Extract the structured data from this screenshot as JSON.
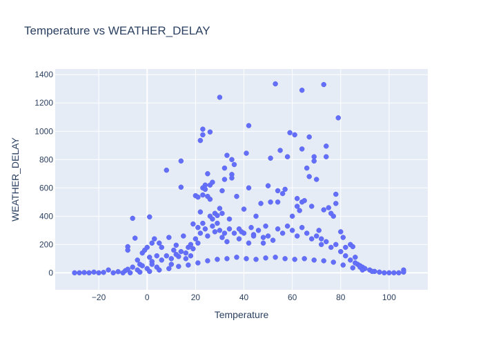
{
  "chart_data": {
    "type": "scatter",
    "title": "Temperature vs WEATHER_DELAY",
    "xlabel": "Temperature",
    "ylabel": "WEATHER_DELAY",
    "xlim": [
      -38,
      116
    ],
    "ylim": [
      -120,
      1440
    ],
    "x_ticks": [
      -20,
      0,
      20,
      40,
      60,
      80,
      100
    ],
    "y_ticks": [
      0,
      200,
      400,
      600,
      800,
      1000,
      1200,
      1400
    ],
    "grid": true,
    "colors": {
      "plot_bg": "#e5ecf6",
      "grid": "#ffffff",
      "marker": "#636efa",
      "text": "#2a3f5f"
    },
    "series": [
      {
        "points": [
          [
            -30,
            0
          ],
          [
            -28,
            0
          ],
          [
            -26,
            2
          ],
          [
            -24,
            0
          ],
          [
            -22,
            5
          ],
          [
            -20,
            0
          ],
          [
            -18,
            3
          ],
          [
            -16,
            20
          ],
          [
            -14,
            0
          ],
          [
            -12,
            8
          ],
          [
            -10,
            0
          ],
          [
            -9,
            15
          ],
          [
            -8,
            25
          ],
          [
            -7,
            0
          ],
          [
            -8,
            185
          ],
          [
            -8,
            160
          ],
          [
            -6,
            385
          ],
          [
            -5,
            245
          ],
          [
            -4,
            90
          ],
          [
            -3,
            60
          ],
          [
            -2,
            140
          ],
          [
            -1,
            160
          ],
          [
            0,
            180
          ],
          [
            1,
            395
          ],
          [
            1,
            110
          ],
          [
            2,
            210
          ],
          [
            2,
            80
          ],
          [
            3,
            240
          ],
          [
            4,
            120
          ],
          [
            5,
            210
          ],
          [
            6,
            180
          ],
          [
            8,
            725
          ],
          [
            9,
            250
          ],
          [
            10,
            100
          ],
          [
            11,
            160
          ],
          [
            12,
            195
          ],
          [
            13,
            115
          ],
          [
            14,
            790
          ],
          [
            14,
            605
          ],
          [
            15,
            260
          ],
          [
            16,
            140
          ],
          [
            17,
            180
          ],
          [
            18,
            120
          ],
          [
            19,
            345
          ],
          [
            20,
            545
          ],
          [
            21,
            535
          ],
          [
            21,
            320
          ],
          [
            22,
            935
          ],
          [
            22,
            430
          ],
          [
            23,
            1015
          ],
          [
            23,
            975
          ],
          [
            23,
            600
          ],
          [
            23,
            550
          ],
          [
            24,
            620
          ],
          [
            24,
            590
          ],
          [
            25,
            700
          ],
          [
            25,
            540
          ],
          [
            26,
            995
          ],
          [
            26,
            620
          ],
          [
            26,
            520
          ],
          [
            27,
            640
          ],
          [
            27,
            380
          ],
          [
            28,
            420
          ],
          [
            29,
            405
          ],
          [
            30,
            1240
          ],
          [
            30,
            455
          ],
          [
            31,
            580
          ],
          [
            31,
            420
          ],
          [
            32,
            660
          ],
          [
            32,
            740
          ],
          [
            33,
            830
          ],
          [
            34,
            380
          ],
          [
            35,
            695
          ],
          [
            35,
            670
          ],
          [
            35,
            800
          ],
          [
            36,
            765
          ],
          [
            37,
            540
          ],
          [
            38,
            310
          ],
          [
            39,
            290
          ],
          [
            40,
            450
          ],
          [
            41,
            845
          ],
          [
            42,
            1040
          ],
          [
            42,
            600
          ],
          [
            43,
            320
          ],
          [
            44,
            270
          ],
          [
            45,
            400
          ],
          [
            47,
            490
          ],
          [
            48,
            250
          ],
          [
            49,
            330
          ],
          [
            50,
            615
          ],
          [
            51,
            810
          ],
          [
            51,
            500
          ],
          [
            53,
            1335
          ],
          [
            54,
            580
          ],
          [
            54,
            500
          ],
          [
            55,
            865
          ],
          [
            56,
            560
          ],
          [
            57,
            590
          ],
          [
            58,
            820
          ],
          [
            59,
            990
          ],
          [
            60,
            400
          ],
          [
            61,
            975
          ],
          [
            62,
            525
          ],
          [
            62,
            470
          ],
          [
            63,
            440
          ],
          [
            64,
            1290
          ],
          [
            64,
            875
          ],
          [
            64,
            500
          ],
          [
            65,
            510
          ],
          [
            66,
            740
          ],
          [
            67,
            960
          ],
          [
            67,
            680
          ],
          [
            68,
            470
          ],
          [
            69,
            820
          ],
          [
            69,
            790
          ],
          [
            70,
            660
          ],
          [
            71,
            300
          ],
          [
            72,
            240
          ],
          [
            73,
            1330
          ],
          [
            73,
            445
          ],
          [
            74,
            895
          ],
          [
            74,
            820
          ],
          [
            75,
            460
          ],
          [
            76,
            420
          ],
          [
            77,
            400
          ],
          [
            78,
            555
          ],
          [
            78,
            490
          ],
          [
            79,
            1095
          ],
          [
            80,
            290
          ],
          [
            81,
            250
          ],
          [
            82,
            180
          ],
          [
            84,
            200
          ],
          [
            85,
            185
          ],
          [
            86,
            110
          ],
          [
            87,
            60
          ],
          [
            88,
            50
          ],
          [
            89,
            40
          ],
          [
            90,
            30
          ],
          [
            92,
            20
          ],
          [
            94,
            10
          ],
          [
            96,
            5
          ],
          [
            98,
            0
          ],
          [
            100,
            0
          ],
          [
            102,
            0
          ],
          [
            104,
            0
          ],
          [
            106,
            20
          ],
          [
            106,
            5
          ],
          [
            -6,
            40
          ],
          [
            -4,
            20
          ],
          [
            -2,
            50
          ],
          [
            0,
            30
          ],
          [
            2,
            60
          ],
          [
            4,
            40
          ],
          [
            6,
            90
          ],
          [
            8,
            120
          ],
          [
            10,
            60
          ],
          [
            12,
            130
          ],
          [
            14,
            150
          ],
          [
            16,
            100
          ],
          [
            18,
            200
          ],
          [
            19,
            170
          ],
          [
            20,
            240
          ],
          [
            21,
            210
          ],
          [
            22,
            280
          ],
          [
            23,
            350
          ],
          [
            24,
            310
          ],
          [
            25,
            260
          ],
          [
            26,
            400
          ],
          [
            27,
            330
          ],
          [
            28,
            290
          ],
          [
            29,
            350
          ],
          [
            30,
            300
          ],
          [
            31,
            250
          ],
          [
            32,
            280
          ],
          [
            33,
            220
          ],
          [
            34,
            310
          ],
          [
            36,
            280
          ],
          [
            38,
            240
          ],
          [
            40,
            280
          ],
          [
            42,
            210
          ],
          [
            44,
            260
          ],
          [
            46,
            300
          ],
          [
            48,
            210
          ],
          [
            50,
            260
          ],
          [
            52,
            230
          ],
          [
            54,
            310
          ],
          [
            56,
            280
          ],
          [
            58,
            330
          ],
          [
            60,
            300
          ],
          [
            62,
            260
          ],
          [
            64,
            320
          ],
          [
            66,
            280
          ],
          [
            68,
            240
          ],
          [
            70,
            260
          ],
          [
            72,
            200
          ],
          [
            74,
            220
          ],
          [
            76,
            180
          ],
          [
            78,
            200
          ],
          [
            80,
            150
          ],
          [
            82,
            120
          ],
          [
            84,
            90
          ],
          [
            86,
            70
          ],
          [
            88,
            40
          ],
          [
            -3,
            5
          ],
          [
            1,
            10
          ],
          [
            5,
            20
          ],
          [
            9,
            30
          ],
          [
            13,
            45
          ],
          [
            17,
            55
          ],
          [
            21,
            70
          ],
          [
            25,
            85
          ],
          [
            29,
            95
          ],
          [
            33,
            100
          ],
          [
            37,
            110
          ],
          [
            41,
            100
          ],
          [
            45,
            95
          ],
          [
            49,
            105
          ],
          [
            53,
            110
          ],
          [
            57,
            100
          ],
          [
            61,
            95
          ],
          [
            65,
            100
          ],
          [
            69,
            90
          ],
          [
            73,
            85
          ],
          [
            77,
            75
          ],
          [
            81,
            55
          ],
          [
            85,
            35
          ],
          [
            89,
            20
          ],
          [
            93,
            10
          ]
        ]
      }
    ]
  }
}
